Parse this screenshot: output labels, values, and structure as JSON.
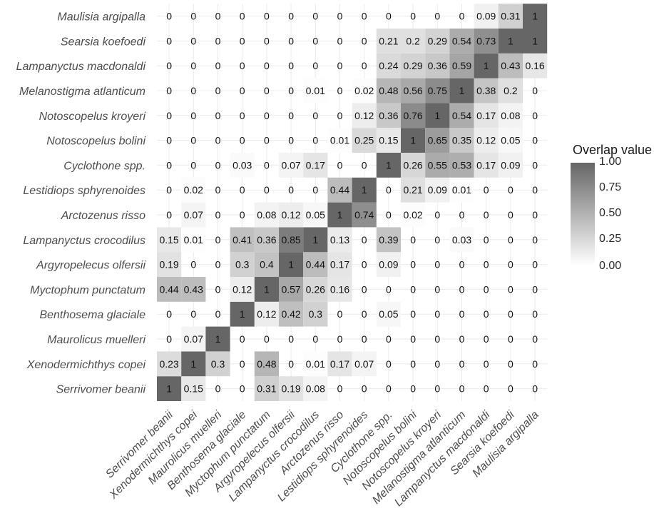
{
  "chart_data": {
    "type": "heatmap",
    "title": "",
    "xlabel": "",
    "ylabel": "",
    "species": [
      "Serrivomer beanii",
      "Xenodermichthys copei",
      "Maurolicus muelleri",
      "Benthosema glaciale",
      "Myctophum punctatum",
      "Argyropelecus olfersii",
      "Lampanyctus crocodilus",
      "Arctozenus risso",
      "Lestidiops sphyrenoides",
      "Cyclothone spp.",
      "Notoscopelus bolini",
      "Notoscopelus kroyeri",
      "Melanostigma atlanticum",
      "Lampanyctus macdonaldi",
      "Searsia koefoedi",
      "Maulisia argipalla"
    ],
    "matrix": [
      [
        1,
        0.15,
        0,
        0,
        0.31,
        0.19,
        0.08,
        0,
        0,
        0,
        0,
        0,
        0,
        0,
        0,
        0
      ],
      [
        0.23,
        1,
        0.3,
        0,
        0.48,
        0,
        0.01,
        0.17,
        0.07,
        0,
        0,
        0,
        0,
        0,
        0,
        0
      ],
      [
        0,
        0.07,
        1,
        0,
        0,
        0,
        0,
        0,
        0,
        0,
        0,
        0,
        0,
        0,
        0,
        0
      ],
      [
        0,
        0,
        0,
        1,
        0.12,
        0.42,
        0.3,
        0,
        0,
        0.05,
        0,
        0,
        0,
        0,
        0,
        0
      ],
      [
        0.44,
        0.43,
        0,
        0.12,
        1,
        0.57,
        0.26,
        0.16,
        0,
        0,
        0,
        0,
        0,
        0,
        0,
        0
      ],
      [
        0.19,
        0,
        0,
        0.3,
        0.4,
        1,
        0.44,
        0.17,
        0,
        0.09,
        0,
        0,
        0,
        0,
        0,
        0
      ],
      [
        0.15,
        0.01,
        0,
        0.41,
        0.36,
        0.85,
        1,
        0.13,
        0,
        0.39,
        0,
        0,
        0.03,
        0,
        0,
        0
      ],
      [
        0,
        0.07,
        0,
        0,
        0.08,
        0.12,
        0.05,
        1,
        0.74,
        0,
        0.02,
        0,
        0,
        0,
        0,
        0
      ],
      [
        0,
        0.02,
        0,
        0,
        0,
        0,
        0,
        0.44,
        1,
        0,
        0.21,
        0.09,
        0.01,
        0,
        0,
        0
      ],
      [
        0,
        0,
        0,
        0.03,
        0,
        0.07,
        0.17,
        0,
        0,
        1,
        0.26,
        0.55,
        0.53,
        0.17,
        0.09,
        0
      ],
      [
        0,
        0,
        0,
        0,
        0,
        0,
        0,
        0.01,
        0.25,
        0.15,
        1,
        0.65,
        0.35,
        0.12,
        0.05,
        0
      ],
      [
        0,
        0,
        0,
        0,
        0,
        0,
        0,
        0,
        0.12,
        0.36,
        0.76,
        1,
        0.54,
        0.17,
        0.08,
        0
      ],
      [
        0,
        0,
        0,
        0,
        0,
        0,
        0.01,
        0,
        0.02,
        0.48,
        0.56,
        0.75,
        1,
        0.38,
        0.2,
        0
      ],
      [
        0,
        0,
        0,
        0,
        0,
        0,
        0,
        0,
        0,
        0.24,
        0.29,
        0.36,
        0.59,
        1,
        0.43,
        0.16
      ],
      [
        0,
        0,
        0,
        0,
        0,
        0,
        0,
        0,
        0,
        0.21,
        0.2,
        0.29,
        0.54,
        0.73,
        1,
        1
      ],
      [
        0,
        0,
        0,
        0,
        0,
        0,
        0,
        0,
        0,
        0,
        0,
        0,
        0,
        0.09,
        0.31,
        1
      ]
    ],
    "color_scale": {
      "low": "#ffffff",
      "high": "#666666",
      "range": [
        0,
        1
      ]
    },
    "grid": true,
    "legend": {
      "title": "Overlap value",
      "placement": "right",
      "ticks": [
        "1.00",
        "0.75",
        "0.50",
        "0.25",
        "0.00"
      ]
    }
  }
}
